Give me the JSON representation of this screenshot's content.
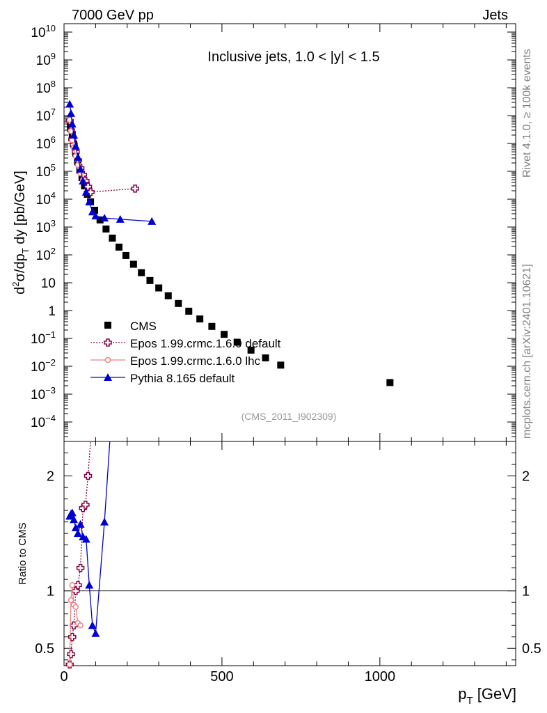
{
  "header": {
    "left": "7000 GeV pp",
    "right": "Jets"
  },
  "side_labels": {
    "rivet": "Rivet 4.1.0, ≥ 100k events",
    "mcplots": "mcplots.cern.ch [arXiv:2401.10621]"
  },
  "chart_data": [
    {
      "type": "scatter",
      "title": "Inclusive jets, 1.0 < |y| < 1.5",
      "xlabel_main": "p",
      "xlabel_sub": "T",
      "xlabel_unit": "[GeV]",
      "ylabel": "d²σ/dp_T dy [pb/GeV]",
      "y_scale": "log",
      "xlim": [
        0,
        1430
      ],
      "ylim": [
        2e-05,
        20000000000
      ],
      "x_ticks": [
        {
          "value": 0,
          "label": "0"
        },
        {
          "value": 500,
          "label": "500"
        },
        {
          "value": 1000,
          "label": "1000"
        }
      ],
      "y_ticks": [
        {
          "value": 0.0001,
          "base": "10",
          "exp": "−4"
        },
        {
          "value": 0.001,
          "base": "10",
          "exp": "−3"
        },
        {
          "value": 0.01,
          "base": "10",
          "exp": "−2"
        },
        {
          "value": 0.1,
          "base": "10",
          "exp": "−1"
        },
        {
          "value": 1,
          "base": "1",
          "exp": ""
        },
        {
          "value": 10,
          "base": "10",
          "exp": ""
        },
        {
          "value": 100,
          "base": "10",
          "exp": "2"
        },
        {
          "value": 1000,
          "base": "10",
          "exp": "3"
        },
        {
          "value": 10000,
          "base": "10",
          "exp": "4"
        },
        {
          "value": 100000,
          "base": "10",
          "exp": "5"
        },
        {
          "value": 1000000,
          "base": "10",
          "exp": "6"
        },
        {
          "value": 10000000,
          "base": "10",
          "exp": "7"
        },
        {
          "value": 100000000,
          "base": "10",
          "exp": "8"
        },
        {
          "value": 1000000000,
          "base": "10",
          "exp": "9"
        },
        {
          "value": 10000000000,
          "base": "10",
          "exp": "10"
        }
      ],
      "legend_position": "lower-left",
      "annotation": "(CMS_2011_I902309)",
      "series": [
        {
          "name": "CMS",
          "color": "#000000",
          "marker": "square",
          "x": [
            20,
            26,
            31,
            37,
            43,
            50,
            57,
            65,
            74,
            84,
            97,
            114,
            133,
            153,
            174,
            196,
            220,
            245,
            272,
            300,
            330,
            362,
            395,
            430,
            468,
            507,
            548,
            592,
            638,
            686,
            1032
          ],
          "y": [
            4000000,
            2100000,
            950000,
            440000,
            220000,
            110000,
            60000,
            30000,
            15000,
            8000,
            4000,
            1800,
            850,
            400,
            190,
            95,
            46,
            23,
            12,
            6.5,
            3.4,
            1.8,
            0.95,
            0.5,
            0.27,
            0.14,
            0.073,
            0.038,
            0.02,
            0.011,
            0.0026
          ]
        },
        {
          "name": "Epos 1.99.crmc.1.6.0 default",
          "color": "#800040",
          "marker": "open-cross",
          "line": "dotted",
          "x": [
            18,
            22,
            26,
            31,
            37,
            44,
            52,
            60,
            68,
            76,
            84,
            225
          ],
          "y": [
            6500000,
            3000000,
            1400000,
            900000,
            500000,
            250000,
            130000,
            75000,
            45000,
            28000,
            18000,
            24000
          ]
        },
        {
          "name": "Epos 1.99.crmc.1.6.0 lhc",
          "color": "#f08080",
          "marker": "open-circle",
          "line": "solid",
          "x": [
            18,
            22,
            26,
            31,
            37,
            44,
            52,
            60
          ],
          "y": [
            7000000,
            2800000,
            1300000,
            700000,
            350000,
            170000,
            85000,
            50000
          ]
        },
        {
          "name": "Pythia 8.165 default",
          "color": "#0000d0",
          "marker": "triangle",
          "line": "solid",
          "x": [
            18,
            22,
            26,
            31,
            37,
            44,
            52,
            60,
            70,
            80,
            90,
            100,
            128,
            178,
            278
          ],
          "y": [
            26000000,
            12000000,
            5000000,
            2000000,
            800000,
            320000,
            120000,
            45000,
            18000,
            8000,
            3500,
            2500,
            2100,
            1900,
            1600
          ]
        }
      ]
    },
    {
      "type": "scatter",
      "ylabel": "Ratio to CMS",
      "xlim": [
        0,
        1430
      ],
      "ylim": [
        0.35,
        2.3
      ],
      "reference_line": 1,
      "y_ticks": [
        {
          "value": 0.5,
          "label": "0.5"
        },
        {
          "value": 1,
          "label": "1"
        },
        {
          "value": 2,
          "label": "2"
        }
      ],
      "series": [
        {
          "name": "Epos 1.99.crmc.1.6.0 default",
          "color": "#800040",
          "marker": "open-cross",
          "line": "dotted",
          "x": [
            18,
            22,
            26,
            31,
            37,
            44,
            52,
            60,
            68,
            76,
            84
          ],
          "y": [
            0.36,
            0.45,
            0.6,
            0.7,
            1.0,
            1.05,
            1.2,
            1.72,
            1.75,
            2.0,
            2.3
          ]
        },
        {
          "name": "Epos 1.99.crmc.1.6.0 lhc",
          "color": "#f08080",
          "marker": "open-circle",
          "line": "solid",
          "x": [
            18,
            22,
            26,
            31,
            37,
            44,
            52
          ],
          "y": [
            0.36,
            0.92,
            1.05,
            0.88,
            0.86,
            0.72,
            0.7
          ]
        },
        {
          "name": "Pythia 8.165 default",
          "color": "#0000d0",
          "marker": "triangle",
          "line": "solid",
          "x": [
            18,
            22,
            26,
            31,
            37,
            44,
            52,
            60,
            70,
            80,
            90,
            100,
            128,
            145
          ],
          "y": [
            1.65,
            1.67,
            1.68,
            1.62,
            1.55,
            1.5,
            1.58,
            1.47,
            1.45,
            1.05,
            0.7,
            0.63,
            1.6,
            2.3
          ]
        }
      ]
    }
  ]
}
